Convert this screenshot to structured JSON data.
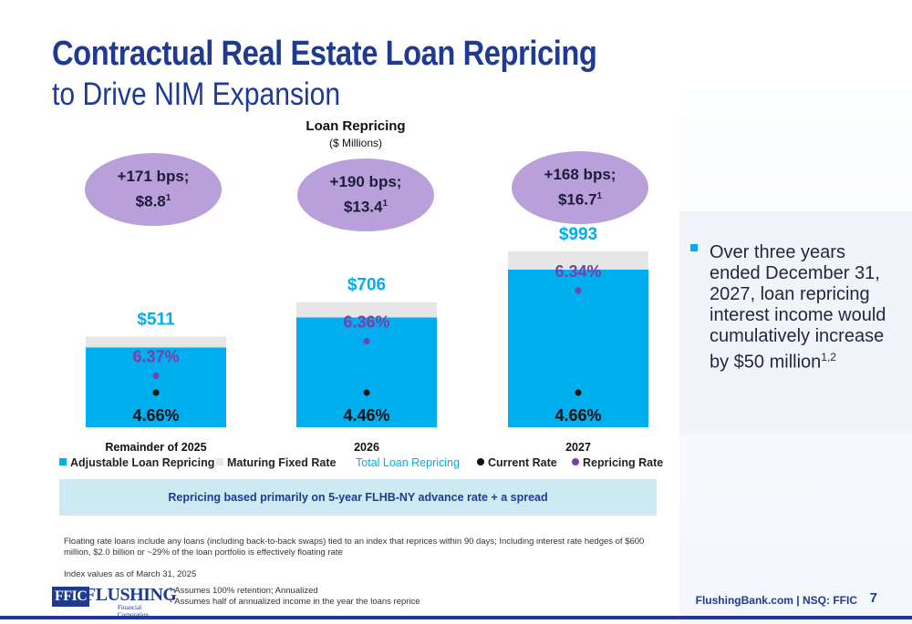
{
  "title": {
    "line1": "Contractual Real Estate Loan Repricing",
    "line2": "to Drive NIM Expansion"
  },
  "chart_data": {
    "type": "bar",
    "title": "Loan Repricing",
    "subtitle": "($ Millions)",
    "categories": [
      "Remainder of 2025",
      "2026",
      "2027"
    ],
    "series": [
      {
        "name": "Adjustable Loan Repricing",
        "color": "#00aeef",
        "values": [
          450,
          620,
          890
        ]
      },
      {
        "name": "Maturing Fixed Rate",
        "color": "#e6e6e6",
        "values": [
          61,
          86,
          103
        ]
      }
    ],
    "totals": {
      "name": "Total Loan Repricing",
      "color": "#00aeef",
      "values": [
        511,
        706,
        993
      ],
      "labels": [
        "$511",
        "$706",
        "$993"
      ]
    },
    "current_rate": {
      "name": "Current Rate",
      "color": "#111111",
      "values": [
        4.66,
        4.46,
        4.66
      ],
      "labels": [
        "4.66%",
        "4.46%",
        "4.66%"
      ]
    },
    "repricing_rate": {
      "name": "Repricing Rate",
      "color": "#7b3fa5",
      "values": [
        6.37,
        6.36,
        6.34
      ],
      "labels": [
        "6.37%",
        "6.36%",
        "6.34%"
      ]
    },
    "bubbles": [
      {
        "line1": "+171 bps;",
        "line2": "$8.8",
        "sup": "1"
      },
      {
        "line1": "+190 bps;",
        "line2": "$13.4",
        "sup": "1"
      },
      {
        "line1": "+168 bps;",
        "line2": "$16.7",
        "sup": "1"
      }
    ],
    "ylim": [
      0,
      1200
    ],
    "grid": false,
    "legend_position": "bottom"
  },
  "legend": {
    "adjustable": "Adjustable Loan Repricing",
    "maturing": "Maturing Fixed Rate",
    "total": "Total Loan Repricing",
    "current": "Current Rate",
    "repricing": "Repricing Rate"
  },
  "band_text": "Repricing based primarily on 5-year FLHB-NY advance rate + a spread",
  "note": {
    "text": "Over three years ended December 31, 2027, loan repricing interest income would cumulatively increase by $50 million",
    "sup": "1,2"
  },
  "footnotes": {
    "floating": "Floating rate loans include any loans (including back-to-back swaps) tied to an index that reprices within 90 days; Including interest rate hedges of $600 million, $2.0 billion or ~29% of the loan portfolio is effectively floating rate",
    "index": "Index values as of March 31, 2025",
    "fn1": "¹ Assumes 100% retention; Annualized",
    "fn2": "² Assumes half of annualized income in the year the loans reprice"
  },
  "logo": {
    "ffic": "FFIC",
    "name": "FLUSHING",
    "sub": "Financial Corporation"
  },
  "footer": {
    "site": "FlushingBank.com  |  NSQ: FFIC",
    "page": "7"
  },
  "colors": {
    "brand": "#1f3a93",
    "accent": "#00aeef",
    "bubble": "#b9a0db",
    "purple": "#7b3fa5"
  }
}
